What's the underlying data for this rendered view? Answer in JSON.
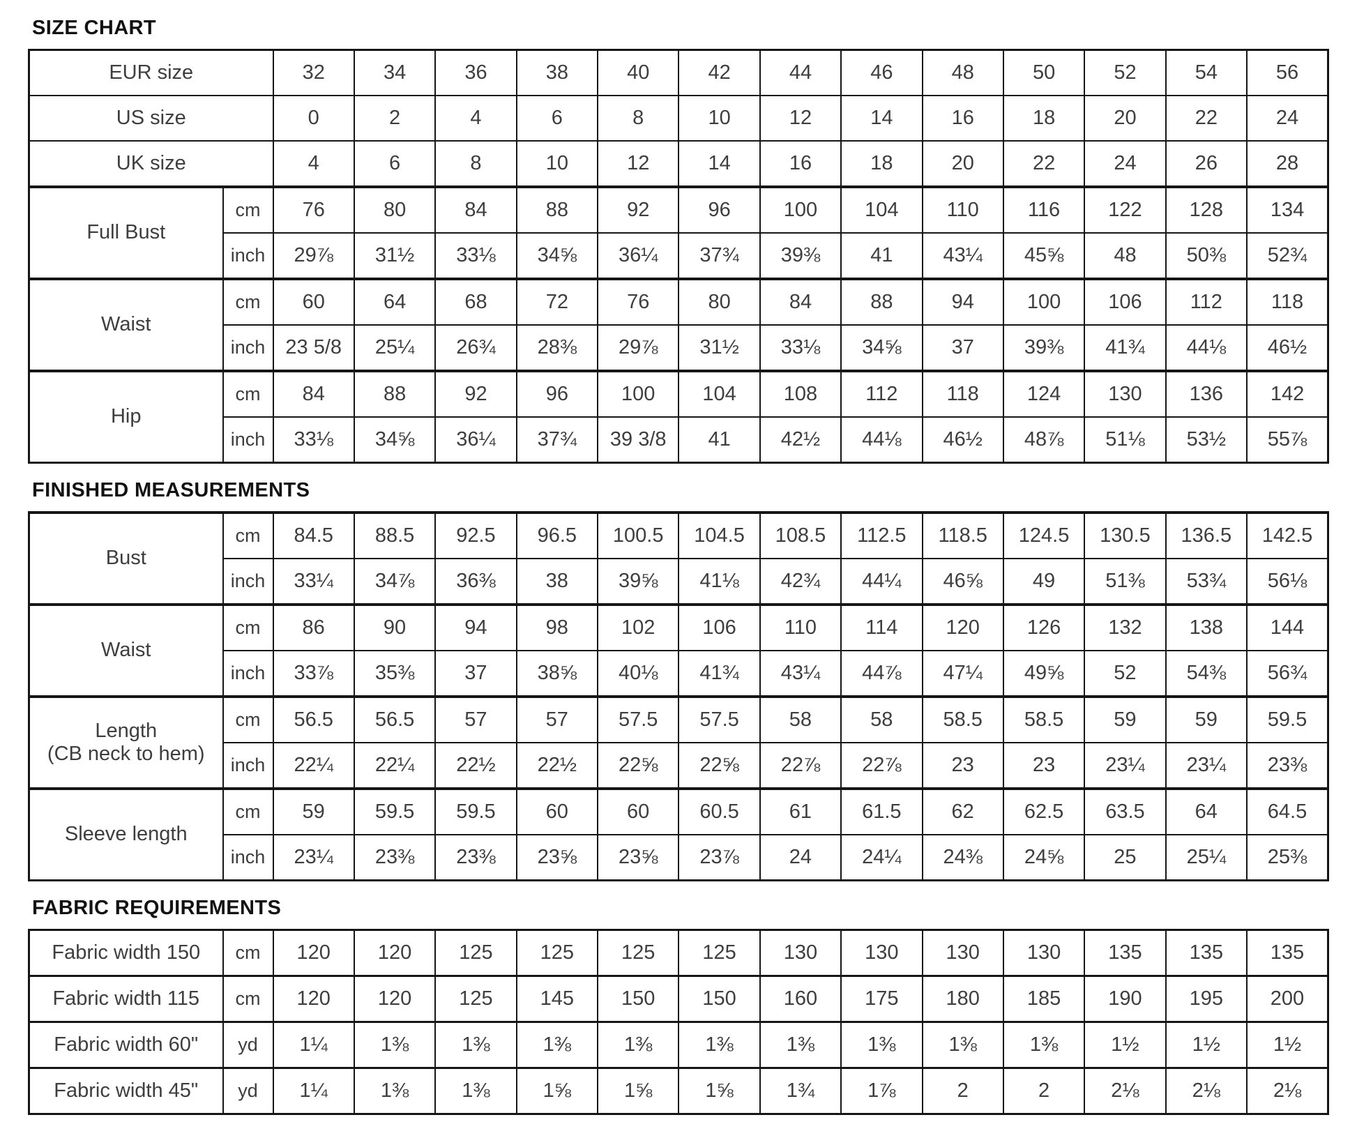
{
  "page": {
    "background": "#ffffff",
    "text_color": "#3e3e3e",
    "border_color": "#161616",
    "title_color": "#121212"
  },
  "sections": [
    {
      "title": "SIZE CHART",
      "rows": [
        {
          "label": "EUR size",
          "values": [
            "32",
            "34",
            "36",
            "38",
            "40",
            "42",
            "44",
            "46",
            "48",
            "50",
            "52",
            "54",
            "56"
          ]
        },
        {
          "label": "US size",
          "values": [
            "0",
            "2",
            "4",
            "6",
            "8",
            "10",
            "12",
            "14",
            "16",
            "18",
            "20",
            "22",
            "24"
          ]
        },
        {
          "label": "UK size",
          "values": [
            "4",
            "6",
            "8",
            "10",
            "12",
            "14",
            "16",
            "18",
            "20",
            "22",
            "24",
            "26",
            "28"
          ]
        },
        {
          "label": "Full Bust",
          "sub": [
            {
              "unit": "cm",
              "values": [
                "76",
                "80",
                "84",
                "88",
                "92",
                "96",
                "100",
                "104",
                "110",
                "116",
                "122",
                "128",
                "134"
              ]
            },
            {
              "unit": "inch",
              "values": [
                "29⅞",
                "31½",
                "33⅛",
                "34⅝",
                "36¼",
                "37¾",
                "39⅜",
                "41",
                "43¼",
                "45⅝",
                "48",
                "50⅜",
                "52¾"
              ]
            }
          ]
        },
        {
          "label": "Waist",
          "sub": [
            {
              "unit": "cm",
              "values": [
                "60",
                "64",
                "68",
                "72",
                "76",
                "80",
                "84",
                "88",
                "94",
                "100",
                "106",
                "112",
                "118"
              ]
            },
            {
              "unit": "inch",
              "values": [
                "23 5/8",
                "25¼",
                "26¾",
                "28⅜",
                "29⅞",
                "31½",
                "33⅛",
                "34⅝",
                "37",
                "39⅜",
                "41¾",
                "44⅛",
                "46½"
              ]
            }
          ]
        },
        {
          "label": "Hip",
          "sub": [
            {
              "unit": "cm",
              "values": [
                "84",
                "88",
                "92",
                "96",
                "100",
                "104",
                "108",
                "112",
                "118",
                "124",
                "130",
                "136",
                "142"
              ]
            },
            {
              "unit": "inch",
              "values": [
                "33⅛",
                "34⅝",
                "36¼",
                "37¾",
                "39 3/8",
                "41",
                "42½",
                "44⅛",
                "46½",
                "48⅞",
                "51⅛",
                "53½",
                "55⅞"
              ]
            }
          ]
        }
      ]
    },
    {
      "title": "FINISHED MEASUREMENTS",
      "rows": [
        {
          "label": "Bust",
          "sub": [
            {
              "unit": "cm",
              "values": [
                "84.5",
                "88.5",
                "92.5",
                "96.5",
                "100.5",
                "104.5",
                "108.5",
                "112.5",
                "118.5",
                "124.5",
                "130.5",
                "136.5",
                "142.5"
              ]
            },
            {
              "unit": "inch",
              "values": [
                "33¼",
                "34⅞",
                "36⅜",
                "38",
                "39⅝",
                "41⅛",
                "42¾",
                "44¼",
                "46⅝",
                "49",
                "51⅜",
                "53¾",
                "56⅛"
              ]
            }
          ]
        },
        {
          "label": "Waist",
          "sub": [
            {
              "unit": "cm",
              "values": [
                "86",
                "90",
                "94",
                "98",
                "102",
                "106",
                "110",
                "114",
                "120",
                "126",
                "132",
                "138",
                "144"
              ]
            },
            {
              "unit": "inch",
              "values": [
                "33⅞",
                "35⅜",
                "37",
                "38⅝",
                "40⅛",
                "41¾",
                "43¼",
                "44⅞",
                "47¼",
                "49⅝",
                "52",
                "54⅜",
                "56¾"
              ]
            }
          ]
        },
        {
          "label": "Length\n(CB neck to hem)",
          "sub": [
            {
              "unit": "cm",
              "values": [
                "56.5",
                "56.5",
                "57",
                "57",
                "57.5",
                "57.5",
                "58",
                "58",
                "58.5",
                "58.5",
                "59",
                "59",
                "59.5"
              ]
            },
            {
              "unit": "inch",
              "values": [
                "22¼",
                "22¼",
                "22½",
                "22½",
                "22⅝",
                "22⅝",
                "22⅞",
                "22⅞",
                "23",
                "23",
                "23¼",
                "23¼",
                "23⅜"
              ]
            }
          ]
        },
        {
          "label": "Sleeve length",
          "sub": [
            {
              "unit": "cm",
              "values": [
                "59",
                "59.5",
                "59.5",
                "60",
                "60",
                "60.5",
                "61",
                "61.5",
                "62",
                "62.5",
                "63.5",
                "64",
                "64.5"
              ]
            },
            {
              "unit": "inch",
              "values": [
                "23¼",
                "23⅜",
                "23⅜",
                "23⅝",
                "23⅝",
                "23⅞",
                "24",
                "24¼",
                "24⅜",
                "24⅝",
                "25",
                "25¼",
                "25⅜"
              ]
            }
          ]
        }
      ]
    },
    {
      "title": "FABRIC REQUIREMENTS",
      "rows": [
        {
          "label": "Fabric width 150",
          "unit": "cm",
          "values": [
            "120",
            "120",
            "125",
            "125",
            "125",
            "125",
            "130",
            "130",
            "130",
            "130",
            "135",
            "135",
            "135"
          ]
        },
        {
          "label": "Fabric width 115",
          "unit": "cm",
          "values": [
            "120",
            "120",
            "125",
            "145",
            "150",
            "150",
            "160",
            "175",
            "180",
            "185",
            "190",
            "195",
            "200"
          ]
        },
        {
          "label": "Fabric width 60\"",
          "unit": "yd",
          "values": [
            "1¼",
            "1⅜",
            "1⅜",
            "1⅜",
            "1⅜",
            "1⅜",
            "1⅜",
            "1⅜",
            "1⅜",
            "1⅜",
            "1½",
            "1½",
            "1½"
          ]
        },
        {
          "label": "Fabric width 45\"",
          "unit": "yd",
          "values": [
            "1¼",
            "1⅜",
            "1⅜",
            "1⅝",
            "1⅝",
            "1⅝",
            "1¾",
            "1⅞",
            "2",
            "2",
            "2⅛",
            "2⅛",
            "2⅛"
          ]
        }
      ]
    }
  ]
}
